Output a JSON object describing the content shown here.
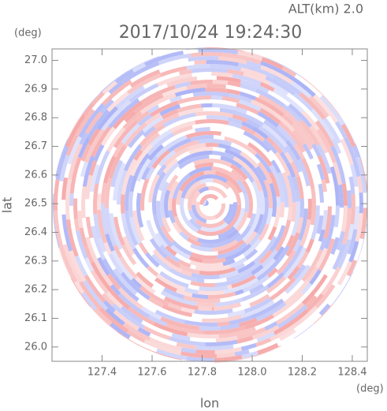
{
  "chart_data": {
    "type": "radar",
    "title": "2017/10/24 19:24:30",
    "subtitle": "ALT(km) 2.0",
    "xlabel": "lon",
    "ylabel": "lat",
    "xunit": "(deg)",
    "yunit": "(deg)",
    "xlim": [
      127.2,
      128.46
    ],
    "ylim": [
      25.95,
      27.04
    ],
    "xticks": [
      127.4,
      127.6,
      {
        "value": 127.8,
        "label": "127.8"
      },
      {
        "value": 128,
        "label": "128.0"
      },
      128.2,
      128.4
    ],
    "yticks": [
      {
        "value": 26,
        "label": "26.0"
      },
      26.1,
      26.2,
      26.3,
      26.4,
      26.5,
      26.6,
      26.7,
      26.8,
      26.9,
      {
        "value": 27,
        "label": "27.0"
      }
    ],
    "colors": [
      "#f6a9a9",
      "#aab3f6"
    ]
  }
}
